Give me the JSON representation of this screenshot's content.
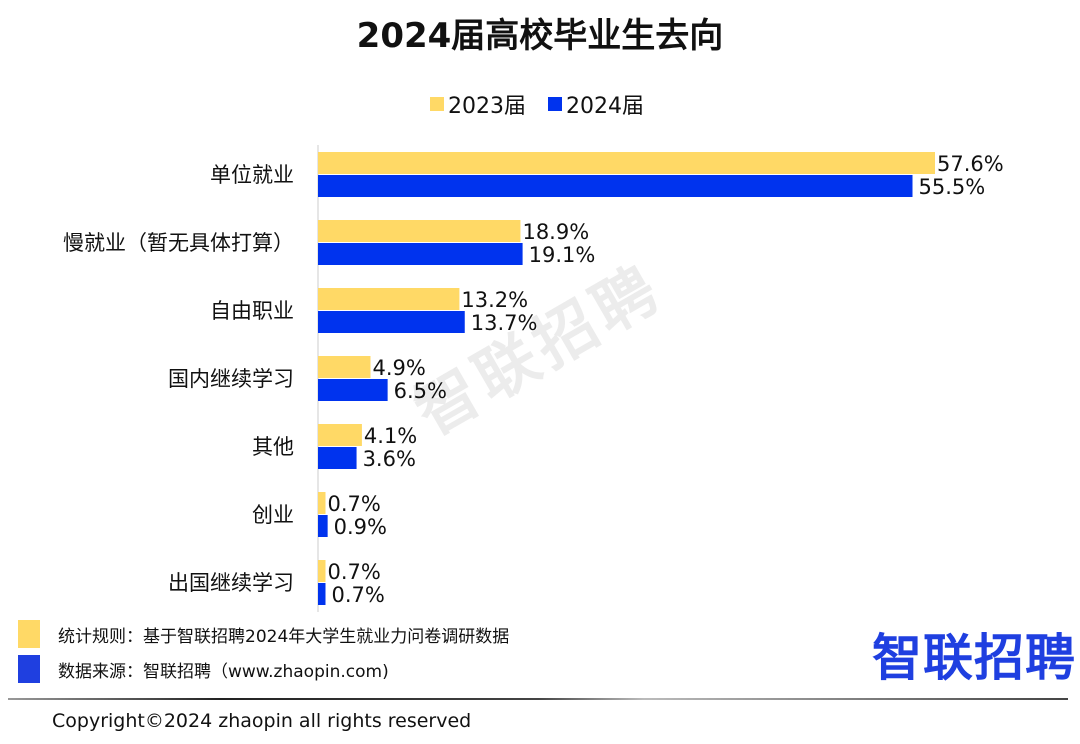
{
  "chart_data": {
    "type": "bar",
    "orientation": "horizontal",
    "title": "2024届高校毕业生去向",
    "categories": [
      "单位就业",
      "慢就业（暂无具体打算）",
      "自由职业",
      "国内继续学习",
      "其他",
      "创业",
      "出国继续学习"
    ],
    "series": [
      {
        "name": "2023届",
        "color": "#FFD966",
        "values": [
          57.6,
          18.9,
          13.2,
          4.9,
          4.1,
          0.7,
          0.7
        ],
        "labels": [
          "57.6%",
          "18.9%",
          "13.2%",
          "4.9%",
          "4.1%",
          "0.7%",
          "0.7%"
        ]
      },
      {
        "name": "2024届",
        "color": "#0033EE",
        "values": [
          55.5,
          19.1,
          13.7,
          6.5,
          3.6,
          0.9,
          0.7
        ],
        "labels": [
          "55.5%",
          "19.1%",
          "13.7%",
          "6.5%",
          "3.6%",
          "0.9%",
          "0.7%"
        ]
      }
    ],
    "legend_position": "top",
    "unit": "%",
    "grid": false
  },
  "watermark": "智联招聘",
  "notes": {
    "rule": "统计规则：基于智联招聘2024年大学生就业力问卷调研数据",
    "source": "数据来源：智联招聘（www.zhaopin.com)"
  },
  "logo": "智联招聘",
  "copyright": "Copyright©2024 zhaopin all rights reserved"
}
